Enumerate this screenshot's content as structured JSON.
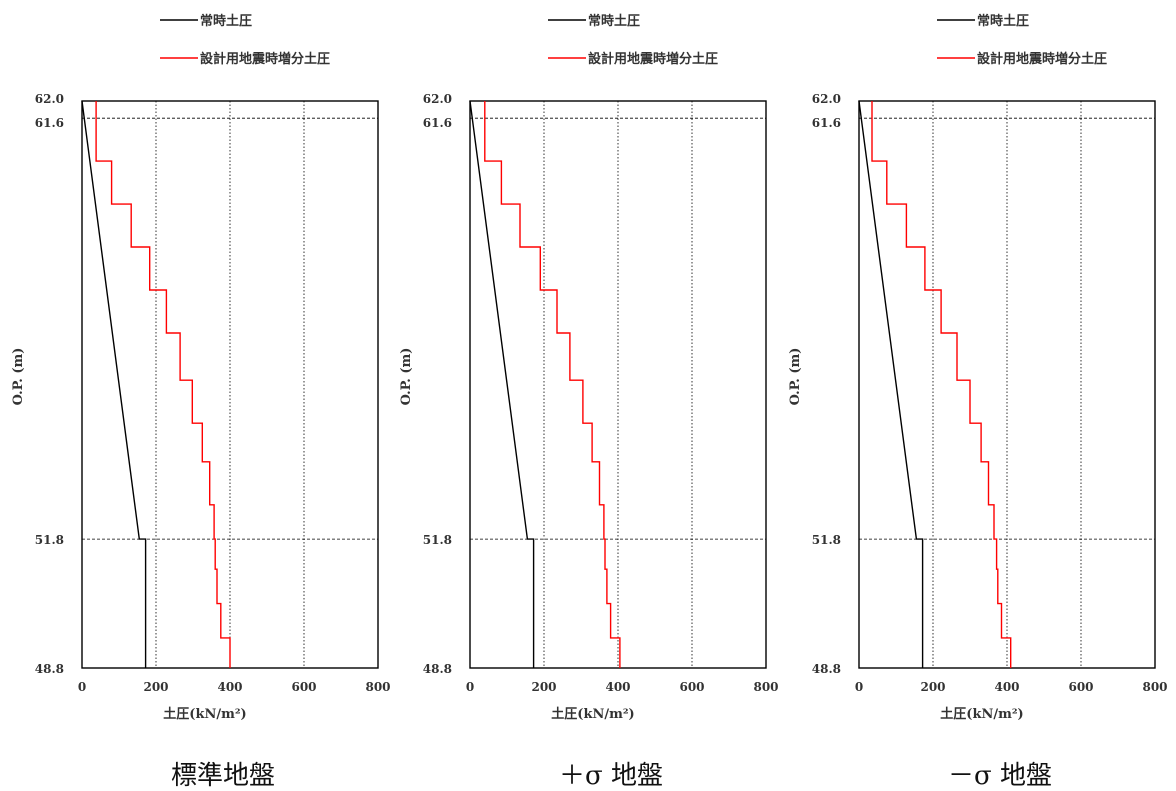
{
  "legend": {
    "static_label": "常時土圧",
    "seismic_label": "設計用地震時増分土圧",
    "static_color": "#000000",
    "seismic_color": "#ff0000"
  },
  "xlabel": "土圧(kN/m²)",
  "ylabel": "O.P. (m)",
  "chart_data": [
    {
      "type": "line",
      "caption": "標準地盤",
      "xlim": [
        0,
        800
      ],
      "ylim": [
        48.8,
        62.0
      ],
      "xticks": [
        0,
        200,
        400,
        600,
        800
      ],
      "yticks": [
        62.0,
        61.6,
        51.8,
        48.8
      ],
      "y_hlines": [
        61.6,
        51.8
      ],
      "series": [
        {
          "name": "常時土圧",
          "color": "#000000",
          "points": [
            [
              0,
              62.0
            ],
            [
              155,
              51.8
            ],
            [
              172,
              51.8
            ],
            [
              172,
              48.8
            ]
          ]
        },
        {
          "name": "設計用地震時増分土圧",
          "color": "#ff0000",
          "points": [
            [
              38,
              62.0
            ],
            [
              38,
              61.6
            ],
            [
              38,
              61.6
            ],
            [
              38,
              60.6
            ],
            [
              80,
              60.6
            ],
            [
              80,
              59.6
            ],
            [
              133,
              59.6
            ],
            [
              133,
              58.6
            ],
            [
              183,
              58.6
            ],
            [
              183,
              57.6
            ],
            [
              228,
              57.6
            ],
            [
              228,
              56.6
            ],
            [
              265,
              56.6
            ],
            [
              265,
              55.5
            ],
            [
              298,
              55.5
            ],
            [
              298,
              54.5
            ],
            [
              325,
              54.5
            ],
            [
              325,
              53.6
            ],
            [
              345,
              53.6
            ],
            [
              345,
              52.6
            ],
            [
              357,
              52.6
            ],
            [
              357,
              51.8
            ],
            [
              360,
              51.8
            ],
            [
              360,
              51.1
            ],
            [
              365,
              51.1
            ],
            [
              365,
              50.3
            ],
            [
              375,
              50.3
            ],
            [
              375,
              49.5
            ],
            [
              400,
              49.5
            ],
            [
              400,
              48.8
            ]
          ]
        }
      ]
    },
    {
      "type": "line",
      "caption": "＋σ 地盤",
      "xlim": [
        0,
        800
      ],
      "ylim": [
        48.8,
        62.0
      ],
      "xticks": [
        0,
        200,
        400,
        600,
        800
      ],
      "yticks": [
        62.0,
        61.6,
        51.8,
        48.8
      ],
      "y_hlines": [
        61.6,
        51.8
      ],
      "series": [
        {
          "name": "常時土圧",
          "color": "#000000",
          "points": [
            [
              0,
              62.0
            ],
            [
              155,
              51.8
            ],
            [
              172,
              51.8
            ],
            [
              172,
              48.8
            ]
          ]
        },
        {
          "name": "設計用地震時増分土圧",
          "color": "#ff0000",
          "points": [
            [
              40,
              62.0
            ],
            [
              40,
              60.6
            ],
            [
              85,
              60.6
            ],
            [
              85,
              59.6
            ],
            [
              135,
              59.6
            ],
            [
              135,
              58.6
            ],
            [
              190,
              58.6
            ],
            [
              190,
              57.6
            ],
            [
              235,
              57.6
            ],
            [
              235,
              56.6
            ],
            [
              270,
              56.6
            ],
            [
              270,
              55.5
            ],
            [
              305,
              55.5
            ],
            [
              305,
              54.5
            ],
            [
              330,
              54.5
            ],
            [
              330,
              53.6
            ],
            [
              350,
              53.6
            ],
            [
              350,
              52.6
            ],
            [
              362,
              52.6
            ],
            [
              362,
              51.8
            ],
            [
              365,
              51.8
            ],
            [
              365,
              51.1
            ],
            [
              370,
              51.1
            ],
            [
              370,
              50.3
            ],
            [
              380,
              50.3
            ],
            [
              380,
              49.5
            ],
            [
              405,
              49.5
            ],
            [
              405,
              48.8
            ]
          ]
        }
      ]
    },
    {
      "type": "line",
      "caption": "－σ 地盤",
      "xlim": [
        0,
        800
      ],
      "ylim": [
        48.8,
        62.0
      ],
      "xticks": [
        0,
        200,
        400,
        600,
        800
      ],
      "yticks": [
        62.0,
        61.6,
        51.8,
        48.8
      ],
      "y_hlines": [
        61.6,
        51.8
      ],
      "series": [
        {
          "name": "常時土圧",
          "color": "#000000",
          "points": [
            [
              0,
              62.0
            ],
            [
              155,
              51.8
            ],
            [
              172,
              51.8
            ],
            [
              172,
              48.8
            ]
          ]
        },
        {
          "name": "設計用地震時増分土圧",
          "color": "#ff0000",
          "points": [
            [
              35,
              62.0
            ],
            [
              35,
              60.6
            ],
            [
              75,
              60.6
            ],
            [
              75,
              59.6
            ],
            [
              128,
              59.6
            ],
            [
              128,
              58.6
            ],
            [
              178,
              58.6
            ],
            [
              178,
              57.6
            ],
            [
              222,
              57.6
            ],
            [
              222,
              56.6
            ],
            [
              265,
              56.6
            ],
            [
              265,
              55.5
            ],
            [
              300,
              55.5
            ],
            [
              300,
              54.5
            ],
            [
              330,
              54.5
            ],
            [
              330,
              53.6
            ],
            [
              350,
              53.6
            ],
            [
              350,
              52.6
            ],
            [
              365,
              52.6
            ],
            [
              365,
              51.8
            ],
            [
              372,
              51.8
            ],
            [
              372,
              51.1
            ],
            [
              375,
              51.1
            ],
            [
              375,
              50.3
            ],
            [
              385,
              50.3
            ],
            [
              385,
              49.5
            ],
            [
              410,
              49.5
            ],
            [
              410,
              48.8
            ]
          ]
        }
      ]
    }
  ]
}
